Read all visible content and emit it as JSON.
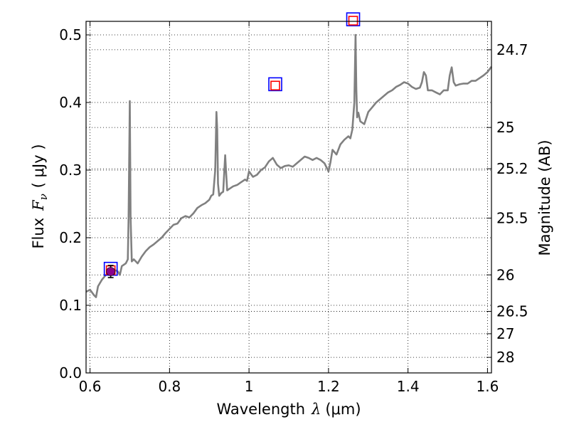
{
  "chart_data": {
    "type": "line",
    "xlabel": "Wavelength",
    "xlabel_symbol": "λ",
    "xlabel_unit": "(μm)",
    "ylabel": "Flux",
    "ylabel_symbol": "F",
    "ylabel_subscript": "ν",
    "ylabel_unit": "( μJy )",
    "y2label": "Magnitude (AB)",
    "xlim": [
      0.59,
      1.61
    ],
    "ylim": [
      0.0,
      0.52
    ],
    "xscale": "linear",
    "yscale": "linear",
    "grid": true,
    "grid_style": "dotted",
    "x_ticks": [
      0.6,
      0.8,
      1.0,
      1.2,
      1.4,
      1.6
    ],
    "x_tick_labels": [
      "0.6",
      "0.8",
      "1",
      "1.2",
      "1.4",
      "1.6"
    ],
    "y_ticks": [
      0.0,
      0.1,
      0.2,
      0.3,
      0.4,
      0.5
    ],
    "y_tick_labels": [
      "0.0",
      "0.1",
      "0.2",
      "0.3",
      "0.4",
      "0.5"
    ],
    "y2_ticks": [
      {
        "label": "24.7",
        "flux": 0.478
      },
      {
        "label": "25",
        "flux": 0.363
      },
      {
        "label": "25.2",
        "flux": 0.302
      },
      {
        "label": "25.5",
        "flux": 0.229
      },
      {
        "label": "26",
        "flux": 0.145
      },
      {
        "label": "26.5",
        "flux": 0.091
      },
      {
        "label": "27",
        "flux": 0.058
      },
      {
        "label": "28",
        "flux": 0.023
      }
    ],
    "series": [
      {
        "type": "line",
        "color": "#808080",
        "x": [
          0.59,
          0.6,
          0.61,
          0.615,
          0.62,
          0.63,
          0.64,
          0.65,
          0.66,
          0.67,
          0.675,
          0.68,
          0.69,
          0.695,
          0.697,
          0.7,
          0.702,
          0.705,
          0.71,
          0.72,
          0.73,
          0.74,
          0.75,
          0.76,
          0.77,
          0.78,
          0.79,
          0.8,
          0.81,
          0.82,
          0.83,
          0.84,
          0.85,
          0.86,
          0.87,
          0.88,
          0.89,
          0.9,
          0.905,
          0.91,
          0.915,
          0.918,
          0.92,
          0.922,
          0.925,
          0.93,
          0.935,
          0.94,
          0.942,
          0.945,
          0.95,
          0.96,
          0.97,
          0.98,
          0.99,
          0.995,
          1.0,
          1.01,
          1.02,
          1.03,
          1.04,
          1.05,
          1.06,
          1.07,
          1.08,
          1.09,
          1.1,
          1.11,
          1.12,
          1.13,
          1.14,
          1.15,
          1.16,
          1.17,
          1.18,
          1.19,
          1.2,
          1.205,
          1.21,
          1.22,
          1.23,
          1.24,
          1.25,
          1.255,
          1.26,
          1.265,
          1.268,
          1.27,
          1.272,
          1.275,
          1.28,
          1.29,
          1.3,
          1.31,
          1.32,
          1.33,
          1.34,
          1.35,
          1.36,
          1.37,
          1.38,
          1.39,
          1.4,
          1.41,
          1.42,
          1.43,
          1.435,
          1.44,
          1.445,
          1.45,
          1.46,
          1.47,
          1.48,
          1.49,
          1.5,
          1.505,
          1.51,
          1.515,
          1.52,
          1.53,
          1.54,
          1.55,
          1.56,
          1.57,
          1.58,
          1.59,
          1.6,
          1.61
        ],
        "y": [
          0.12,
          0.123,
          0.115,
          0.112,
          0.128,
          0.138,
          0.145,
          0.15,
          0.153,
          0.15,
          0.145,
          0.158,
          0.162,
          0.168,
          0.23,
          0.402,
          0.23,
          0.165,
          0.168,
          0.162,
          0.172,
          0.18,
          0.186,
          0.19,
          0.195,
          0.2,
          0.207,
          0.213,
          0.219,
          0.221,
          0.229,
          0.232,
          0.23,
          0.236,
          0.244,
          0.248,
          0.251,
          0.256,
          0.262,
          0.264,
          0.3,
          0.386,
          0.36,
          0.28,
          0.262,
          0.266,
          0.268,
          0.322,
          0.3,
          0.27,
          0.272,
          0.276,
          0.278,
          0.282,
          0.286,
          0.284,
          0.298,
          0.29,
          0.293,
          0.3,
          0.304,
          0.313,
          0.318,
          0.308,
          0.303,
          0.306,
          0.307,
          0.305,
          0.31,
          0.315,
          0.32,
          0.318,
          0.315,
          0.318,
          0.315,
          0.31,
          0.298,
          0.312,
          0.33,
          0.323,
          0.338,
          0.345,
          0.35,
          0.347,
          0.36,
          0.4,
          0.5,
          0.42,
          0.378,
          0.385,
          0.372,
          0.368,
          0.386,
          0.393,
          0.4,
          0.405,
          0.41,
          0.415,
          0.418,
          0.423,
          0.426,
          0.43,
          0.428,
          0.423,
          0.42,
          0.422,
          0.43,
          0.445,
          0.44,
          0.418,
          0.418,
          0.415,
          0.412,
          0.418,
          0.418,
          0.44,
          0.452,
          0.43,
          0.425,
          0.427,
          0.428,
          0.428,
          0.432,
          0.432,
          0.436,
          0.44,
          0.445,
          0.453
        ]
      },
      {
        "type": "marker",
        "shape": "square",
        "edge": "#0000ff",
        "points": [
          {
            "x": 0.652,
            "y": 0.154
          },
          {
            "x": 1.066,
            "y": 0.427
          },
          {
            "x": 1.262,
            "y": 0.523
          }
        ]
      },
      {
        "type": "marker",
        "shape": "square",
        "edge": "#ff0000",
        "points": [
          {
            "x": 0.652,
            "y": 0.152
          },
          {
            "x": 1.066,
            "y": 0.425
          },
          {
            "x": 1.262,
            "y": 0.521
          }
        ]
      },
      {
        "type": "errorbar",
        "marker": "circle",
        "fill": "#8b008b",
        "color": "#000000",
        "points": [
          {
            "x": 0.652,
            "y": 0.15,
            "ymin": 0.141,
            "ymax": 0.159
          }
        ]
      }
    ]
  }
}
